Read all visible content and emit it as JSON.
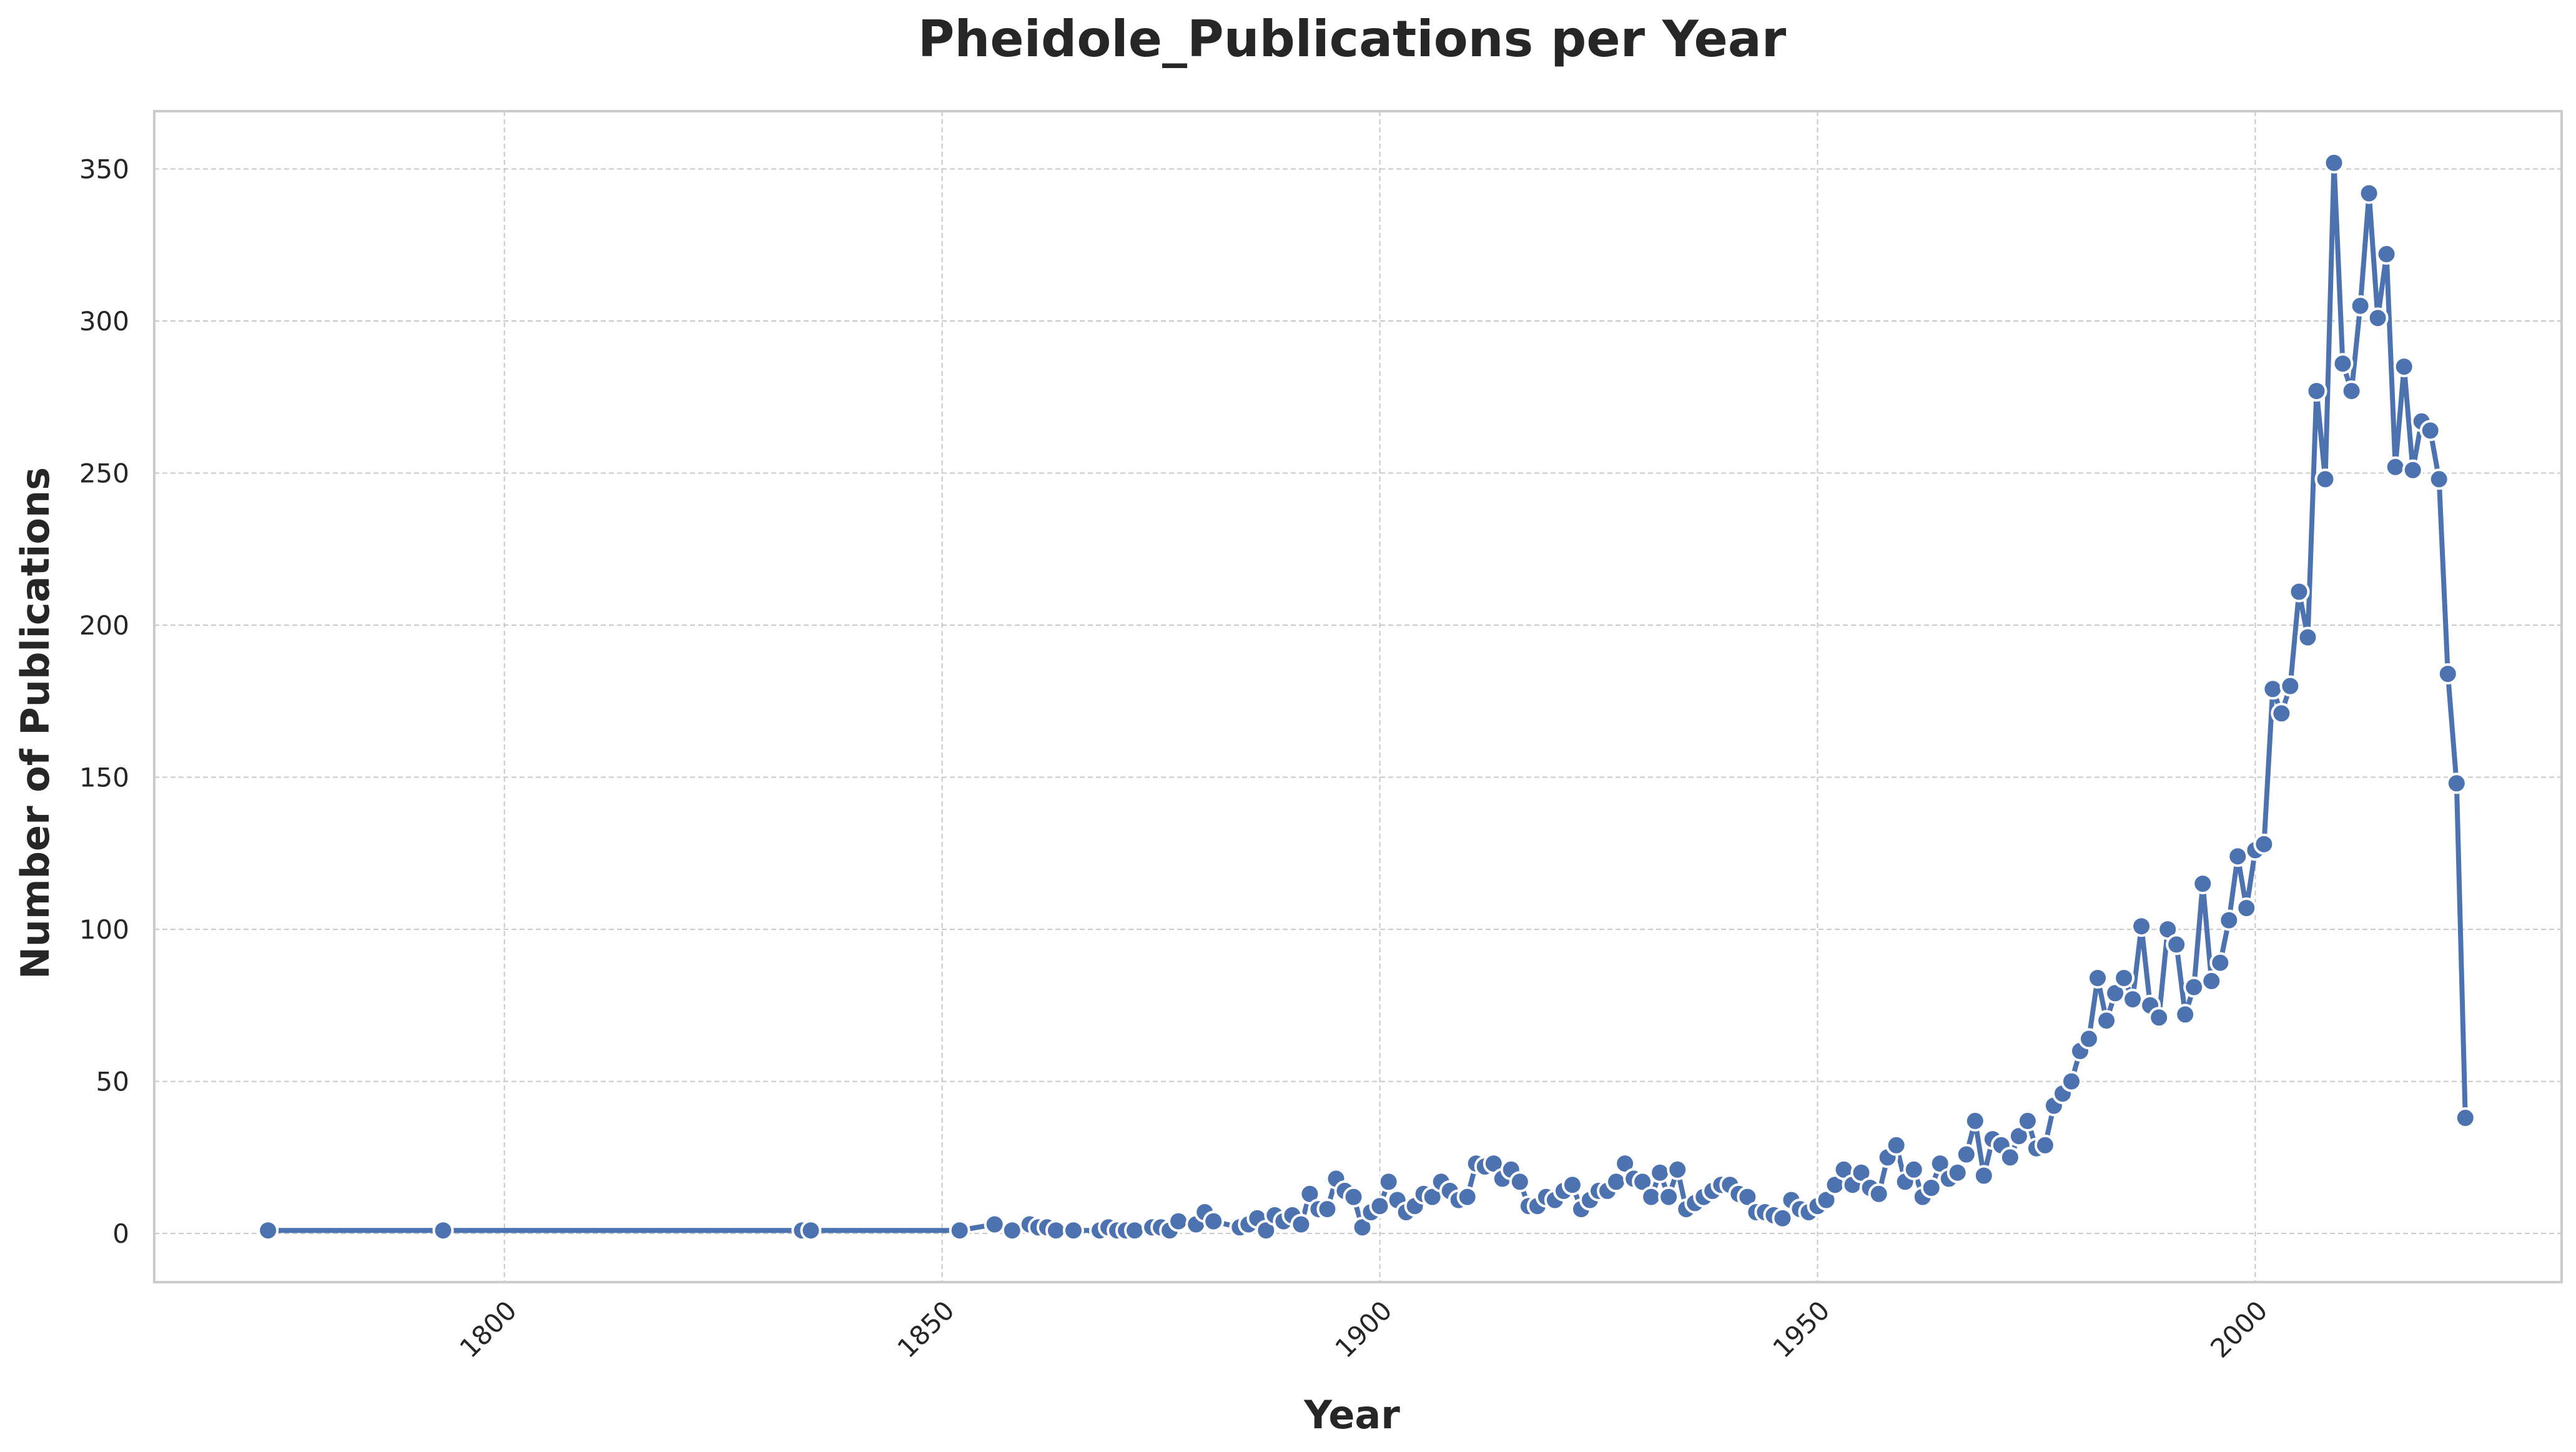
{
  "chart_data": {
    "type": "line",
    "title": "Pheidole_Publications per Year",
    "xlabel": "Year",
    "ylabel": "Number of Publications",
    "xlim": [
      1760,
      2035
    ],
    "ylim": [
      -16,
      369
    ],
    "xticks": [
      1800,
      1850,
      1900,
      1950,
      2000
    ],
    "yticks": [
      0,
      50,
      100,
      150,
      200,
      250,
      300,
      350
    ],
    "grid": true,
    "legend": "none",
    "series": [
      {
        "color": "#4c72b0",
        "marker": "circle",
        "x": [
          1773,
          1793,
          1834,
          1835,
          1852,
          1856,
          1858,
          1860,
          1861,
          1862,
          1863,
          1865,
          1868,
          1869,
          1870,
          1871,
          1872,
          1874,
          1875,
          1876,
          1877,
          1879,
          1880,
          1881,
          1884,
          1885,
          1886,
          1887,
          1888,
          1889,
          1890,
          1891,
          1892,
          1893,
          1894,
          1895,
          1896,
          1897,
          1898,
          1899,
          1900,
          1901,
          1902,
          1903,
          1904,
          1905,
          1906,
          1907,
          1908,
          1909,
          1910,
          1911,
          1912,
          1913,
          1914,
          1915,
          1916,
          1917,
          1918,
          1919,
          1920,
          1921,
          1922,
          1923,
          1924,
          1925,
          1926,
          1927,
          1928,
          1929,
          1930,
          1931,
          1932,
          1933,
          1934,
          1935,
          1936,
          1937,
          1938,
          1939,
          1940,
          1941,
          1942,
          1943,
          1944,
          1945,
          1946,
          1947,
          1948,
          1949,
          1950,
          1951,
          1952,
          1953,
          1954,
          1955,
          1956,
          1957,
          1958,
          1959,
          1960,
          1961,
          1962,
          1963,
          1964,
          1965,
          1966,
          1967,
          1968,
          1969,
          1970,
          1971,
          1972,
          1973,
          1974,
          1975,
          1976,
          1977,
          1978,
          1979,
          1980,
          1981,
          1982,
          1983,
          1984,
          1985,
          1986,
          1987,
          1988,
          1989,
          1990,
          1991,
          1992,
          1993,
          1994,
          1995,
          1996,
          1997,
          1998,
          1999,
          2000,
          2001,
          2002,
          2003,
          2004,
          2005,
          2006,
          2007,
          2008,
          2009,
          2010,
          2011,
          2012,
          2013,
          2014,
          2015,
          2016,
          2017,
          2018,
          2019,
          2020,
          2021,
          2022,
          2023,
          2024
        ],
        "y": [
          1,
          1,
          1,
          1,
          1,
          3,
          1,
          3,
          2,
          2,
          1,
          1,
          1,
          2,
          1,
          1,
          1,
          2,
          2,
          1,
          4,
          3,
          7,
          4,
          2,
          3,
          5,
          1,
          6,
          4,
          6,
          3,
          13,
          8,
          8,
          18,
          14,
          12,
          2,
          7,
          9,
          17,
          11,
          7,
          9,
          13,
          12,
          17,
          14,
          11,
          12,
          23,
          22,
          23,
          18,
          21,
          17,
          9,
          9,
          12,
          11,
          14,
          16,
          8,
          11,
          14,
          14,
          17,
          23,
          18,
          17,
          12,
          20,
          12,
          21,
          8,
          10,
          12,
          14,
          16,
          16,
          13,
          12,
          7,
          7,
          6,
          5,
          11,
          8,
          7,
          9,
          11,
          16,
          21,
          16,
          20,
          15,
          13,
          25,
          29,
          17,
          21,
          12,
          15,
          23,
          18,
          20,
          26,
          37,
          19,
          31,
          29,
          25,
          32,
          37,
          28,
          29,
          42,
          46,
          50,
          60,
          64,
          84,
          70,
          79,
          84,
          77,
          101,
          75,
          71,
          100,
          95,
          72,
          81,
          115,
          83,
          89,
          103,
          124,
          107,
          126,
          128,
          179,
          171,
          180,
          211,
          196,
          277,
          248,
          352,
          286,
          277,
          305,
          342,
          301,
          322,
          252,
          285,
          251,
          267,
          264,
          248,
          184,
          148,
          38
        ]
      }
    ]
  }
}
